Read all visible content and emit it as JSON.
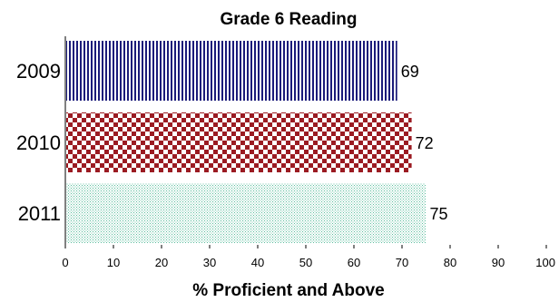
{
  "chart_data": {
    "type": "bar",
    "orientation": "horizontal",
    "title": "Grade 6 Reading",
    "xlabel": "% Proficient and Above",
    "ylabel": "",
    "categories": [
      "2009",
      "2010",
      "2011"
    ],
    "values": [
      69,
      72,
      75
    ],
    "value_labels": [
      "69",
      "72",
      "75"
    ],
    "xlim": [
      0,
      100
    ],
    "xticks": [
      "0",
      "10",
      "20",
      "30",
      "40",
      "50",
      "60",
      "70",
      "80",
      "90",
      "100"
    ],
    "grid": false,
    "legend": "none",
    "bar_styles": [
      {
        "pattern": "vertical-stripes",
        "color": "#1b1b7a"
      },
      {
        "pattern": "checkerboard",
        "color": "#9b1b22"
      },
      {
        "pattern": "dotted",
        "color": "#5fbfa0"
      }
    ]
  }
}
